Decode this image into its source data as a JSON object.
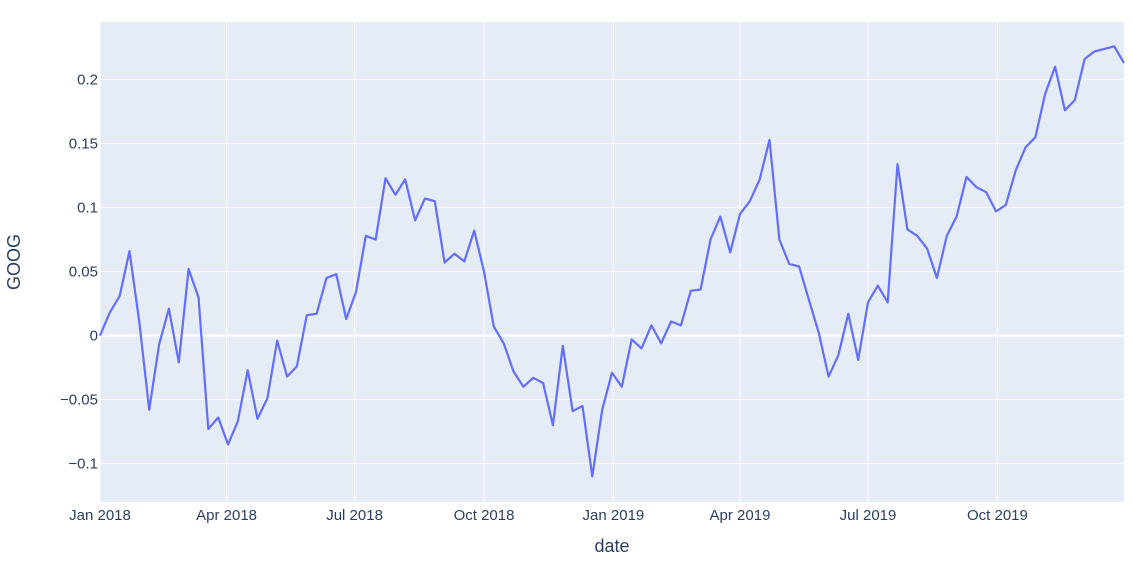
{
  "chart_data": {
    "type": "line",
    "xlabel": "date",
    "ylabel": "GOOG",
    "ylim": [
      -0.13,
      0.245
    ],
    "xlim": [
      "2018-01-01",
      "2019-12-30"
    ],
    "grid": true,
    "colors": {
      "plot_bg": "#e5ecf6",
      "grid": "#ffffff",
      "line": "#636efa",
      "text": "#2a3f5f"
    },
    "x_ticks": [
      {
        "date": "2018-01-01",
        "label": "Jan 2018"
      },
      {
        "date": "2018-04-01",
        "label": "Apr 2018"
      },
      {
        "date": "2018-07-01",
        "label": "Jul 2018"
      },
      {
        "date": "2018-10-01",
        "label": "Oct 2018"
      },
      {
        "date": "2019-01-01",
        "label": "Jan 2019"
      },
      {
        "date": "2019-04-01",
        "label": "Apr 2019"
      },
      {
        "date": "2019-07-01",
        "label": "Jul 2019"
      },
      {
        "date": "2019-10-01",
        "label": "Oct 2019"
      }
    ],
    "y_ticks": [
      {
        "value": -0.1,
        "label": "−0.1"
      },
      {
        "value": -0.05,
        "label": "−0.05"
      },
      {
        "value": 0,
        "label": "0"
      },
      {
        "value": 0.05,
        "label": "0.05"
      },
      {
        "value": 0.1,
        "label": "0.1"
      },
      {
        "value": 0.15,
        "label": "0.15"
      },
      {
        "value": 0.2,
        "label": "0.2"
      }
    ],
    "series": [
      {
        "x": [
          "2018-01-01",
          "2018-01-08",
          "2018-01-15",
          "2018-01-22",
          "2018-01-29",
          "2018-02-05",
          "2018-02-12",
          "2018-02-19",
          "2018-02-26",
          "2018-03-05",
          "2018-03-12",
          "2018-03-19",
          "2018-03-26",
          "2018-04-02",
          "2018-04-09",
          "2018-04-16",
          "2018-04-23",
          "2018-04-30",
          "2018-05-07",
          "2018-05-14",
          "2018-05-21",
          "2018-05-28",
          "2018-06-04",
          "2018-06-11",
          "2018-06-18",
          "2018-06-25",
          "2018-07-02",
          "2018-07-09",
          "2018-07-16",
          "2018-07-23",
          "2018-07-30",
          "2018-08-06",
          "2018-08-13",
          "2018-08-20",
          "2018-08-27",
          "2018-09-03",
          "2018-09-10",
          "2018-09-17",
          "2018-09-24",
          "2018-10-01",
          "2018-10-08",
          "2018-10-15",
          "2018-10-22",
          "2018-10-29",
          "2018-11-05",
          "2018-11-12",
          "2018-11-19",
          "2018-11-26",
          "2018-12-03",
          "2018-12-10",
          "2018-12-17",
          "2018-12-24",
          "2018-12-31",
          "2019-01-07",
          "2019-01-14",
          "2019-01-21",
          "2019-01-28",
          "2019-02-04",
          "2019-02-11",
          "2019-02-18",
          "2019-02-25",
          "2019-03-04",
          "2019-03-11",
          "2019-03-18",
          "2019-03-25",
          "2019-04-01",
          "2019-04-08",
          "2019-04-15",
          "2019-04-22",
          "2019-04-29",
          "2019-05-06",
          "2019-05-13",
          "2019-05-20",
          "2019-05-27",
          "2019-06-03",
          "2019-06-10",
          "2019-06-17",
          "2019-06-24",
          "2019-07-01",
          "2019-07-08",
          "2019-07-15",
          "2019-07-22",
          "2019-07-29",
          "2019-08-05",
          "2019-08-12",
          "2019-08-19",
          "2019-08-26",
          "2019-09-02",
          "2019-09-09",
          "2019-09-16",
          "2019-09-23",
          "2019-09-30",
          "2019-10-07",
          "2019-10-14",
          "2019-10-21",
          "2019-10-28",
          "2019-11-04",
          "2019-11-11",
          "2019-11-18",
          "2019-11-25",
          "2019-12-02",
          "2019-12-09",
          "2019-12-16",
          "2019-12-23",
          "2019-12-30"
        ],
        "y": [
          0,
          0.018,
          0.031,
          0.066,
          0.01,
          -0.058,
          -0.007,
          0.021,
          -0.021,
          0.052,
          0.03,
          -0.073,
          -0.064,
          -0.085,
          -0.067,
          -0.027,
          -0.065,
          -0.049,
          -0.004,
          -0.032,
          -0.024,
          0.016,
          0.017,
          0.045,
          0.048,
          0.013,
          0.034,
          0.078,
          0.075,
          0.123,
          0.11,
          0.122,
          0.09,
          0.107,
          0.105,
          0.057,
          0.064,
          0.058,
          0.082,
          0.05,
          0.007,
          -0.006,
          -0.028,
          -0.04,
          -0.033,
          -0.037,
          -0.07,
          -0.008,
          -0.059,
          -0.055,
          -0.11,
          -0.058,
          -0.029,
          -0.04,
          -0.003,
          -0.01,
          0.008,
          -0.006,
          0.011,
          0.008,
          0.035,
          0.036,
          0.075,
          0.093,
          0.065,
          0.095,
          0.105,
          0.122,
          0.153,
          0.075,
          0.056,
          0.054,
          0.028,
          0.002,
          -0.032,
          -0.015,
          0.017,
          -0.019,
          0.026,
          0.039,
          0.026,
          0.134,
          0.083,
          0.078,
          0.068,
          0.045,
          0.078,
          0.093,
          0.124,
          0.116,
          0.112,
          0.097,
          0.102,
          0.129,
          0.147,
          0.155,
          0.189,
          0.21,
          0.176,
          0.184,
          0.216,
          0.222,
          0.224,
          0.226,
          0.213
        ]
      }
    ]
  }
}
